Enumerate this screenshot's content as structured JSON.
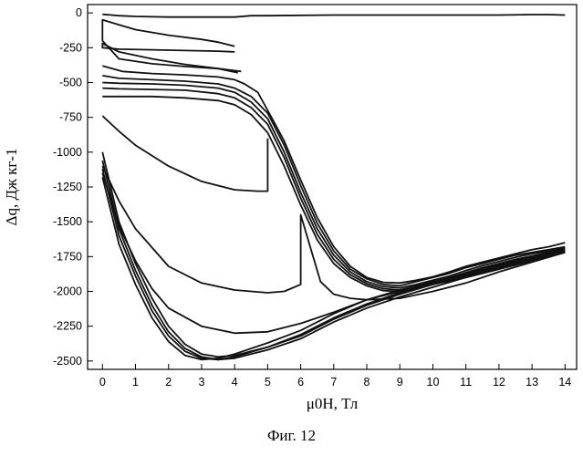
{
  "chart_data": {
    "type": "line",
    "xlabel": "μ0H, Тл",
    "ylabel": "Δq, Дж кг-1",
    "xlim": [
      -0.45,
      14.35
    ],
    "ylim": [
      -2560,
      60
    ],
    "x_ticks": [
      0,
      1,
      2,
      3,
      4,
      5,
      6,
      7,
      8,
      9,
      10,
      11,
      12,
      13,
      14
    ],
    "y_ticks": [
      0,
      -250,
      -500,
      -750,
      -1000,
      -1250,
      -1500,
      -1750,
      -2000,
      -2250,
      -2500
    ],
    "grid": false,
    "series": [
      {
        "x": [
          0,
          0.5,
          1,
          2,
          3,
          4,
          4.5,
          5,
          7,
          9,
          11,
          12,
          13,
          13.5,
          14
        ],
        "y": [
          -10,
          -20,
          -25,
          -30,
          -30,
          -30,
          -20,
          -20,
          -15,
          -15,
          -15,
          -15,
          -12,
          -12,
          -15
        ]
      },
      {
        "x": [
          4,
          3.5,
          3,
          2,
          1,
          0,
          0,
          0.5,
          1.5,
          2.5,
          3.5,
          4.2
        ],
        "y": [
          -240,
          -210,
          -190,
          -160,
          -120,
          -50,
          -200,
          -330,
          -365,
          -385,
          -400,
          -420
        ]
      },
      {
        "x": [
          4.1,
          3.5,
          2.5,
          1.5,
          0.5,
          0,
          0,
          0.5,
          1.5,
          2.5,
          3.5,
          4
        ],
        "y": [
          -430,
          -400,
          -370,
          -330,
          -280,
          -220,
          -250,
          -260,
          -265,
          -270,
          -275,
          -280
        ]
      },
      {
        "x": [
          0,
          0.6,
          1.5,
          2.5,
          3.5,
          4,
          4.3,
          4.7,
          5,
          5.5,
          6,
          6.5,
          7,
          7.5,
          8,
          8.5,
          9,
          9.5,
          10,
          10.5,
          11,
          11.5,
          12,
          12.5,
          13,
          13.5,
          14
        ],
        "y": [
          -380,
          -420,
          -435,
          -445,
          -460,
          -480,
          -510,
          -570,
          -700,
          -920,
          -1200,
          -1470,
          -1680,
          -1820,
          -1900,
          -1935,
          -1940,
          -1920,
          -1895,
          -1860,
          -1820,
          -1790,
          -1760,
          -1730,
          -1700,
          -1680,
          -1650
        ]
      },
      {
        "x": [
          0,
          0.5,
          1.5,
          2.5,
          3.5,
          4,
          4.5,
          5,
          5.5,
          6,
          6.5,
          7,
          7.5,
          8,
          8.5,
          9,
          9.5,
          10,
          10.5,
          11,
          11.5,
          12,
          12.5,
          13,
          13.5,
          14
        ],
        "y": [
          -450,
          -470,
          -480,
          -490,
          -510,
          -540,
          -600,
          -720,
          -950,
          -1240,
          -1510,
          -1710,
          -1840,
          -1910,
          -1950,
          -1960,
          -1930,
          -1900,
          -1870,
          -1830,
          -1800,
          -1770,
          -1740,
          -1720,
          -1700,
          -1680
        ]
      },
      {
        "x": [
          0,
          0.5,
          1.5,
          2.5,
          3.5,
          4,
          4.5,
          5,
          5.5,
          6,
          6.5,
          7,
          7.5,
          8,
          8.5,
          9,
          9.5,
          10,
          10.5,
          11,
          11.5,
          12,
          12.5,
          13,
          13.5,
          14
        ],
        "y": [
          -500,
          -505,
          -510,
          -520,
          -540,
          -570,
          -640,
          -760,
          -1000,
          -1290,
          -1550,
          -1740,
          -1860,
          -1930,
          -1965,
          -1975,
          -1950,
          -1920,
          -1890,
          -1850,
          -1815,
          -1785,
          -1755,
          -1730,
          -1710,
          -1690
        ]
      },
      {
        "x": [
          0,
          0.5,
          1.5,
          2.5,
          3.5,
          4,
          4.5,
          5,
          5.5,
          6,
          6.5,
          7,
          7.5,
          8,
          8.5,
          9,
          9.5,
          10,
          10.5,
          11,
          11.5,
          12,
          12.5,
          13,
          13.5,
          14
        ],
        "y": [
          -540,
          -545,
          -550,
          -555,
          -580,
          -610,
          -680,
          -800,
          -1040,
          -1330,
          -1590,
          -1770,
          -1880,
          -1945,
          -1980,
          -1990,
          -1965,
          -1935,
          -1900,
          -1865,
          -1830,
          -1800,
          -1770,
          -1745,
          -1720,
          -1700
        ]
      },
      {
        "x": [
          0,
          0.5,
          1.5,
          2.5,
          3.5,
          4,
          4.5,
          5,
          5.5,
          6,
          6.5,
          7,
          7.5,
          8,
          8.5,
          9,
          9.5,
          10,
          10.5,
          11,
          11.5,
          12,
          12.5,
          13,
          13.5,
          14
        ],
        "y": [
          -600,
          -600,
          -600,
          -610,
          -630,
          -660,
          -730,
          -860,
          -1100,
          -1380,
          -1630,
          -1800,
          -1900,
          -1960,
          -1995,
          -2000,
          -1975,
          -1945,
          -1910,
          -1875,
          -1840,
          -1810,
          -1780,
          -1755,
          -1730,
          -1710
        ]
      },
      {
        "x": [
          0,
          0.5,
          1,
          1.5,
          2,
          2.5,
          3,
          3.5,
          4,
          5,
          6,
          7,
          8,
          9,
          10,
          11,
          12,
          13,
          14
        ],
        "y": [
          -1000,
          -1500,
          -1800,
          -2050,
          -2250,
          -2380,
          -2450,
          -2470,
          -2460,
          -2400,
          -2320,
          -2200,
          -2100,
          -2020,
          -1950,
          -1880,
          -1820,
          -1760,
          -1700
        ]
      },
      {
        "x": [
          0,
          0.5,
          1,
          1.5,
          2,
          2.5,
          3,
          3.5,
          4,
          5,
          6,
          7,
          8,
          9,
          10,
          11,
          12,
          13,
          14
        ],
        "y": [
          -1060,
          -1550,
          -1850,
          -2100,
          -2290,
          -2410,
          -2470,
          -2490,
          -2480,
          -2420,
          -2340,
          -2220,
          -2120,
          -2040,
          -1970,
          -1900,
          -1840,
          -1780,
          -1720
        ]
      },
      {
        "x": [
          0,
          0.5,
          1,
          1.5,
          2,
          2.5,
          3,
          3.5,
          4,
          5,
          6,
          7,
          8,
          9,
          10,
          11,
          12,
          13,
          14
        ],
        "y": [
          -1120,
          -1600,
          -1890,
          -2140,
          -2320,
          -2430,
          -2480,
          -2490,
          -2470,
          -2400,
          -2310,
          -2190,
          -2090,
          -2010,
          -1950,
          -1890,
          -1830,
          -1770,
          -1710
        ]
      },
      {
        "x": [
          0,
          0.5,
          1,
          1.5,
          2,
          2.5,
          3,
          3.5,
          4,
          5,
          6,
          7,
          8,
          9,
          10,
          11,
          12,
          13,
          14
        ],
        "y": [
          -1180,
          -1660,
          -1950,
          -2190,
          -2360,
          -2460,
          -2490,
          -2480,
          -2450,
          -2370,
          -2280,
          -2160,
          -2060,
          -1990,
          -1930,
          -1870,
          -1810,
          -1750,
          -1690
        ]
      },
      {
        "x": [
          0,
          0.5,
          1,
          1.5,
          2,
          3,
          4,
          5,
          6,
          7,
          8,
          9,
          10,
          11,
          12,
          13,
          14
        ],
        "y": [
          -1150,
          -1530,
          -1780,
          -1980,
          -2120,
          -2250,
          -2300,
          -2290,
          -2230,
          -2150,
          -2060,
          -2000,
          -1950,
          -1900,
          -1840,
          -1780,
          -1720
        ]
      },
      {
        "x": [
          0,
          0.5,
          1,
          2,
          3,
          4,
          5,
          5.5,
          6,
          6,
          6.6,
          7,
          7.5,
          8,
          9,
          10,
          11,
          12,
          13,
          14
        ],
        "y": [
          -1100,
          -1350,
          -1550,
          -1820,
          -1940,
          -1990,
          -2010,
          -2000,
          -1950,
          -1450,
          -1930,
          -2020,
          -2050,
          -2060,
          -2050,
          -2000,
          -1940,
          -1860,
          -1790,
          -1720
        ]
      },
      {
        "x": [
          0,
          0.5,
          1,
          2,
          3,
          4,
          4.7,
          5,
          5
        ],
        "y": [
          -740,
          -850,
          -950,
          -1100,
          -1210,
          -1270,
          -1280,
          -1280,
          -900
        ]
      }
    ]
  },
  "caption": "Фиг. 12"
}
